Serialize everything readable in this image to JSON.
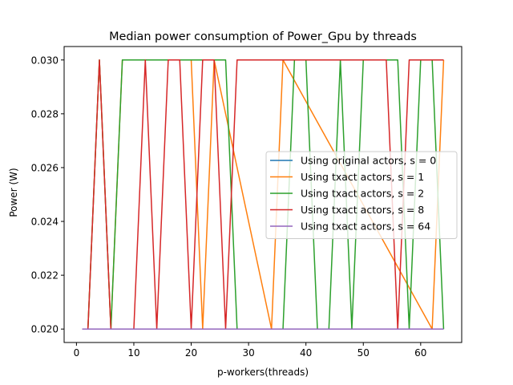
{
  "chart_data": {
    "type": "line",
    "title": "Median power consumption of Power_Gpu by threads",
    "xlabel": "p-workers(threads)",
    "ylabel": "Power (W)",
    "xlim": [
      -2.15,
      67.15
    ],
    "ylim": [
      0.0195,
      0.0305
    ],
    "xticks": [
      0,
      10,
      20,
      30,
      40,
      50,
      60
    ],
    "yticks": [
      0.02,
      0.022,
      0.024,
      0.026,
      0.028,
      0.03
    ],
    "ytick_labels": [
      "0.020",
      "0.022",
      "0.024",
      "0.026",
      "0.028",
      "0.030"
    ],
    "grid": false,
    "legend_position": "center-right",
    "series": [
      {
        "name": "Using original actors, s = 0",
        "color": "#1f77b4",
        "x": [
          1,
          64
        ],
        "y": [
          0.02,
          0.02
        ]
      },
      {
        "name": "Using txact actors, s = 1",
        "color": "#ff7f0e",
        "x": [
          1,
          2,
          4,
          6,
          8,
          20,
          22,
          24,
          34,
          36,
          62,
          64
        ],
        "y": [
          0.02,
          0.02,
          0.03,
          0.02,
          0.03,
          0.03,
          0.02,
          0.03,
          0.02,
          0.03,
          0.02,
          0.03
        ]
      },
      {
        "name": "Using txact actors, s = 2",
        "color": "#2ca02c",
        "x": [
          1,
          2,
          4,
          6,
          8,
          26,
          28,
          36,
          38,
          40,
          42,
          44,
          46,
          48,
          50,
          52,
          54,
          56,
          58,
          60,
          62,
          64
        ],
        "y": [
          0.02,
          0.02,
          0.03,
          0.02,
          0.03,
          0.03,
          0.02,
          0.02,
          0.03,
          0.03,
          0.02,
          0.02,
          0.03,
          0.02,
          0.03,
          0.03,
          0.03,
          0.03,
          0.02,
          0.03,
          0.03,
          0.02
        ]
      },
      {
        "name": "Using txact actors, s = 8",
        "color": "#d62728",
        "x": [
          1,
          2,
          4,
          6,
          8,
          10,
          12,
          14,
          16,
          18,
          20,
          22,
          24,
          26,
          28,
          54,
          56,
          58,
          64
        ],
        "y": [
          0.02,
          0.02,
          0.03,
          0.02,
          0.02,
          0.02,
          0.03,
          0.02,
          0.03,
          0.03,
          0.02,
          0.03,
          0.03,
          0.02,
          0.03,
          0.03,
          0.02,
          0.03,
          0.03
        ]
      },
      {
        "name": "Using txact actors, s = 64",
        "color": "#9467bd",
        "x": [
          1,
          6,
          64
        ],
        "y": [
          0.02,
          0.02,
          0.02
        ]
      }
    ]
  }
}
